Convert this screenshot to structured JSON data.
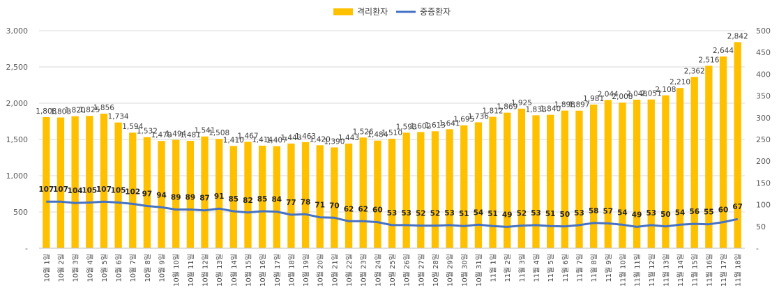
{
  "chart_data": {
    "type": "bar",
    "legend": {
      "placement": "top-center",
      "entries": [
        {
          "label": "격리환자",
          "color": "#FFC000",
          "kind": "bar"
        },
        {
          "label": "중증환자",
          "color": "#4472C4",
          "kind": "line"
        }
      ]
    },
    "categories": [
      "10월 1일",
      "10월 2일",
      "10월 3일",
      "10월 4일",
      "10월 5일",
      "10월 6일",
      "10월 7일",
      "10월 8일",
      "10월 9일",
      "10월 10일",
      "10월 11일",
      "10월 12일",
      "10월 13일",
      "10월 14일",
      "10월 15일",
      "10월 16일",
      "10월 17일",
      "10월 18일",
      "10월 19일",
      "10월 20일",
      "10월 21일",
      "10월 22일",
      "10월 23일",
      "10월 24일",
      "10월 25일",
      "10월 26일",
      "10월 27일",
      "10월 28일",
      "10월 29일",
      "10월 30일",
      "10월 31일",
      "11월 1일",
      "11월 2일",
      "11월 3일",
      "11월 4일",
      "11월 5일",
      "11월 6일",
      "11월 7일",
      "11월 8일",
      "11월 9일",
      "11월 10일",
      "11월 11일",
      "11월 12일",
      "11월 13일",
      "11월 14일",
      "11월 15일",
      "11월 16일",
      "11월 17일",
      "11월 18일"
    ],
    "series": [
      {
        "name": "격리환자",
        "type": "bar",
        "axis": "left",
        "color": "#FFC000",
        "values": [
          1808,
          1803,
          1820,
          1825,
          1856,
          1734,
          1594,
          1532,
          1479,
          1494,
          1481,
          1541,
          1508,
          1410,
          1467,
          1414,
          1407,
          1443,
          1463,
          1420,
          1390,
          1443,
          1526,
          1484,
          1510,
          1593,
          1602,
          1613,
          1641,
          1695,
          1736,
          1812,
          1869,
          1925,
          1833,
          1840,
          1898,
          1897,
          1981,
          2044,
          2008,
          2048,
          2051,
          2108,
          2210,
          2362,
          2516,
          2644,
          2842
        ],
        "labels": [
          "1,808",
          "1,803",
          "1,820",
          "1,825",
          "1,856",
          "1,734",
          "1,594",
          "1,532",
          "1,479",
          "1,494",
          "1,481",
          "1,541",
          "1,508",
          "1,410",
          "1,467",
          "1,414",
          "1,407",
          "1,443",
          "1,463",
          "1,420",
          "1,390",
          "1,443",
          "1,526",
          "1,484",
          "1,510",
          "1,593",
          "1,602",
          "1,613",
          "1,641",
          "1,695",
          "1,736",
          "1,812",
          "1,869",
          "1,925",
          "1,833",
          "1,840",
          "1,898",
          "1,897",
          "1,981",
          "2,044",
          "2,008",
          "2,048",
          "2,051",
          "2,108",
          "2,210",
          "2,362",
          "2,516",
          "2,644",
          "2,842"
        ]
      },
      {
        "name": "중증환자",
        "type": "line",
        "axis": "right",
        "color": "#4472C4",
        "values": [
          107,
          107,
          104,
          105,
          107,
          105,
          102,
          97,
          94,
          89,
          89,
          87,
          91,
          85,
          82,
          85,
          84,
          77,
          78,
          71,
          70,
          62,
          62,
          60,
          53,
          53,
          52,
          52,
          53,
          51,
          54,
          51,
          49,
          52,
          53,
          51,
          50,
          53,
          58,
          57,
          54,
          49,
          53,
          50,
          54,
          56,
          55,
          60,
          67
        ]
      }
    ],
    "y_left": {
      "range": [
        0,
        3000
      ],
      "ticks": [
        "-",
        "500",
        "1,000",
        "1,500",
        "2,000",
        "2,500",
        "3,000"
      ]
    },
    "y_right": {
      "range": [
        0,
        500
      ],
      "ticks": [
        "-",
        "50",
        "100",
        "150",
        "200",
        "250",
        "300",
        "350",
        "400",
        "450",
        "500"
      ]
    },
    "grid": true
  }
}
